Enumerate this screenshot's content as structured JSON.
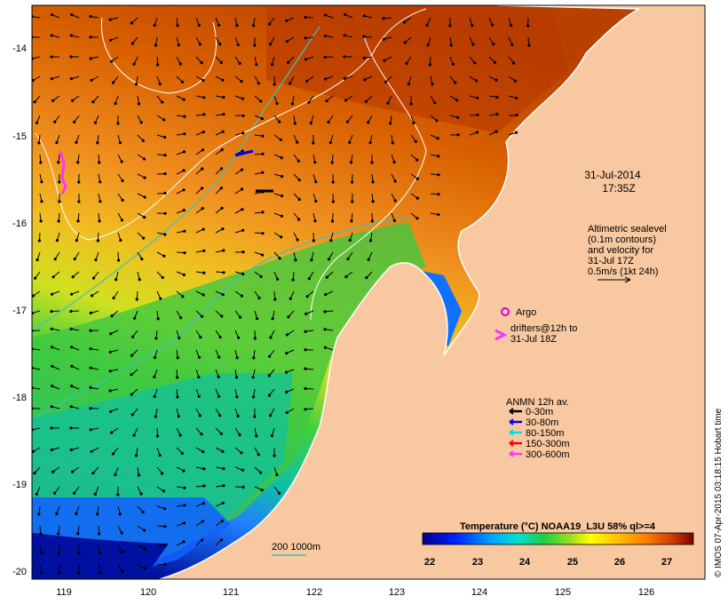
{
  "map": {
    "lon_ticks": [
      "119",
      "120",
      "121",
      "122",
      "123",
      "124",
      "125",
      "126"
    ],
    "lat_ticks": [
      "-14",
      "-15",
      "-16",
      "-17",
      "-18",
      "-19",
      "-20"
    ]
  },
  "timestamp": {
    "date": "31-Jul-2014",
    "time": "17:35Z"
  },
  "altimetry": {
    "line1": "Altimetric sealevel",
    "line2": "(0.1m contours)",
    "line3": "and velocity for",
    "line4": "31-Jul 17Z",
    "line5": "0.5m/s (1kt 24h)"
  },
  "argo": {
    "label": "Argo",
    "color": "#dd00dd"
  },
  "drifters": {
    "line1": "drifters@12h to",
    "line2": "31-Jul 18Z",
    "color": "#ff33ff"
  },
  "anmn": {
    "title": "ANMN 12h av.",
    "items": [
      {
        "label": "0-30m",
        "color": "#000000"
      },
      {
        "label": "30-80m",
        "color": "#0000ff"
      },
      {
        "label": "80-150m",
        "color": "#00e0e0"
      },
      {
        "label": "150-300m",
        "color": "#ff0000"
      },
      {
        "label": "300-600m",
        "color": "#ff33ff"
      }
    ]
  },
  "isobath": {
    "label": "200  1000m",
    "color": "#40c0c0"
  },
  "colorbar": {
    "title": "Temperature (°C) NOAA19_L3U 58% ql>=4",
    "ticks": [
      "22",
      "23",
      "24",
      "25",
      "26",
      "27"
    ]
  },
  "credit": "© IMOS 07-Apr-2015 03:18:15 Hobart time",
  "colors": {
    "land": "#f8c8a0",
    "warm": "#c04000",
    "cool": "#0010a0"
  }
}
